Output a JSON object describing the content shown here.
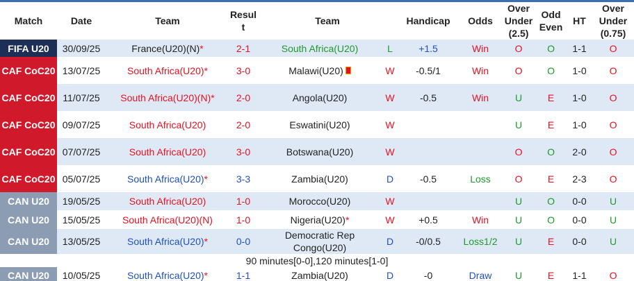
{
  "header": [
    "Match",
    "Date",
    "Team",
    "Result",
    "Team",
    "Handicap",
    "Odds",
    "Over Under (2.5)",
    "Odd Even",
    "HT",
    "Over Under (0.75)"
  ],
  "rows": [
    {
      "match": "FIFA U20",
      "date": "30/09/25",
      "home": "France(U20)(N)",
      "home_mark": "*",
      "score": "2-1",
      "away": "South Africa(U20)",
      "res": "L",
      "hcp": "+1.5",
      "odds": "Win",
      "ou": "O",
      "oe": "O",
      "ht": "1-1",
      "ou2": "O"
    },
    {
      "match": "CAF CoC20",
      "date": "13/07/25",
      "home": "South Africa(U20)",
      "home_mark": "*",
      "score": "3-0",
      "away": "Malawi(U20)",
      "away_red_cards": 1,
      "res": "W",
      "hcp": "-0.5/1",
      "odds": "Win",
      "ou": "O",
      "oe": "O",
      "ht": "1-0",
      "ou2": "O"
    },
    {
      "match": "CAF CoC20",
      "date": "11/07/25",
      "home": "South Africa(U20)(N)",
      "home_mark": "*",
      "score": "2-0",
      "away": "Angola(U20)",
      "res": "W",
      "hcp": "-0.5",
      "odds": "Win",
      "ou": "U",
      "oe": "E",
      "ht": "1-0",
      "ou2": "O"
    },
    {
      "match": "CAF CoC20",
      "date": "09/07/25",
      "home": "South Africa(U20)",
      "score": "2-0",
      "away": "Eswatini(U20)",
      "res": "W",
      "ou": "U",
      "oe": "E",
      "ht": "1-0",
      "ou2": "O"
    },
    {
      "match": "CAF CoC20",
      "date": "07/07/25",
      "home": "South Africa(U20)",
      "score": "3-0",
      "away": "Botswana(U20)",
      "res": "W",
      "ou": "O",
      "oe": "O",
      "ht": "2-0",
      "ou2": "O"
    },
    {
      "match": "CAF CoC20",
      "date": "05/07/25",
      "home": "South Africa(U20)",
      "home_mark": "*",
      "score": "3-3",
      "away": "Zambia(U20)",
      "res": "D",
      "hcp": "-0.5",
      "odds": "Loss",
      "ou": "O",
      "oe": "E",
      "ht": "2-3",
      "ou2": "O"
    },
    {
      "match": "CAN U20",
      "date": "19/05/25",
      "home": "South Africa(U20)",
      "score": "1-0",
      "away": "Morocco(U20)",
      "res": "W",
      "ou": "U",
      "oe": "O",
      "ht": "0-0",
      "ou2": "U"
    },
    {
      "match": "CAN U20",
      "date": "15/05/25",
      "home": "South Africa(U20)(N)",
      "score": "1-0",
      "away": "Nigeria(U20)",
      "away_mark": "*",
      "res": "W",
      "hcp": "+0.5",
      "odds": "Win",
      "ou": "U",
      "oe": "O",
      "ht": "0-0",
      "ou2": "U"
    },
    {
      "match": "CAN U20",
      "date": "13/05/25",
      "home": "South Africa(U20)",
      "home_mark": "*",
      "score": "0-0",
      "away": "Democratic Rep Congo(U20)",
      "res": "D",
      "hcp": "-0/0.5",
      "odds": "Loss1/2",
      "ou": "U",
      "oe": "E",
      "ht": "0-0",
      "ou2": "U",
      "note": "90 minutes[0-0],120 minutes[1-0]"
    },
    {
      "match": "CAN U20",
      "date": "10/05/25",
      "home": "South Africa(U20)",
      "home_mark": "*",
      "score": "1-1",
      "away": "Zambia(U20)",
      "res": "D",
      "hcp": "-0",
      "odds": "Draw",
      "ou": "U",
      "oe": "E",
      "ht": "1-1",
      "ou2": "O"
    }
  ]
}
